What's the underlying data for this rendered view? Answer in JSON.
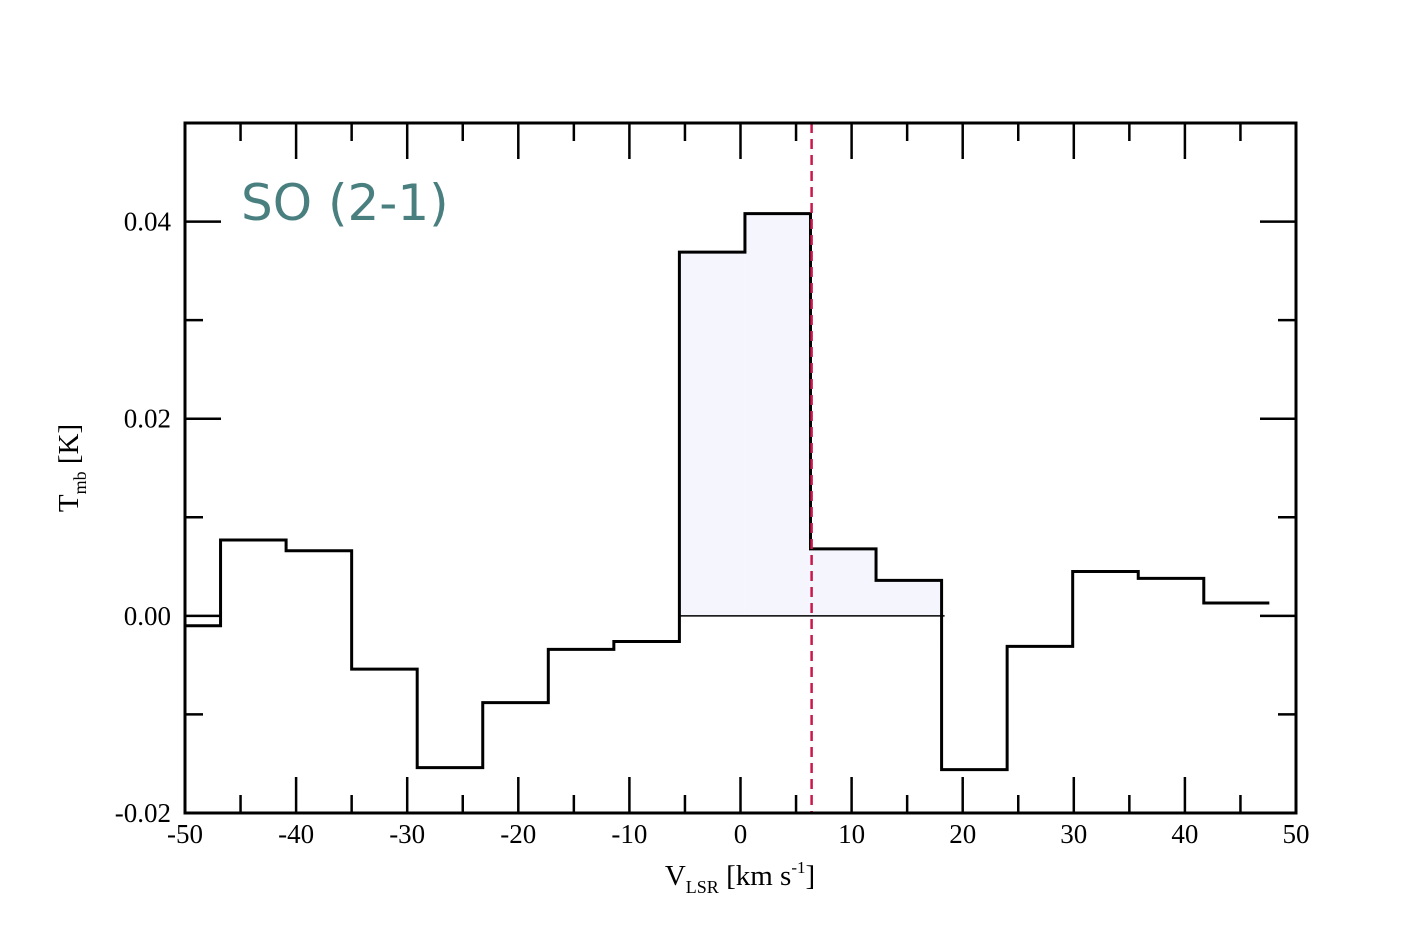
{
  "chart_data": {
    "type": "line",
    "step": true,
    "xlabel": {
      "main": "V",
      "sub": "LSR",
      "unit_pre": " [km s",
      "unit_sup": "-1",
      "unit_post": "]"
    },
    "ylabel": {
      "main": "T",
      "sub": "mb",
      "unit": " [K]"
    },
    "annotation": "SO (2-1)",
    "xlim": [
      -50,
      50
    ],
    "ylim": [
      -0.02,
      0.05
    ],
    "xticks": [
      "-50",
      "-40",
      "-30",
      "-20",
      "-10",
      "0",
      "10",
      "20",
      "30",
      "40",
      "50"
    ],
    "yticks": [
      "-0.02",
      "0.00",
      "0.02",
      "0.04"
    ],
    "bin_edges": [
      -50,
      -46.8,
      -40.9,
      -35.0,
      -29.1,
      -23.2,
      -17.3,
      -11.4,
      -5.5,
      0.4,
      6.3,
      12.2,
      18.1,
      24.0,
      29.9,
      35.8,
      41.7,
      47.6
    ],
    "values": [
      -0.001,
      0.0077,
      0.0066,
      -0.0054,
      -0.0154,
      -0.0088,
      -0.0034,
      -0.0026,
      0.0369,
      0.0408,
      0.0068,
      0.0036,
      -0.0156,
      -0.0031,
      0.0045,
      0.0038,
      0.0013
    ],
    "shaded_range": [
      -5.5,
      18.1
    ],
    "vline_x": 6.4,
    "colors": {
      "line": "#000000",
      "shade": "#f5f6fd",
      "vline": "#c8194b",
      "annotation": "#4a7f80"
    }
  }
}
